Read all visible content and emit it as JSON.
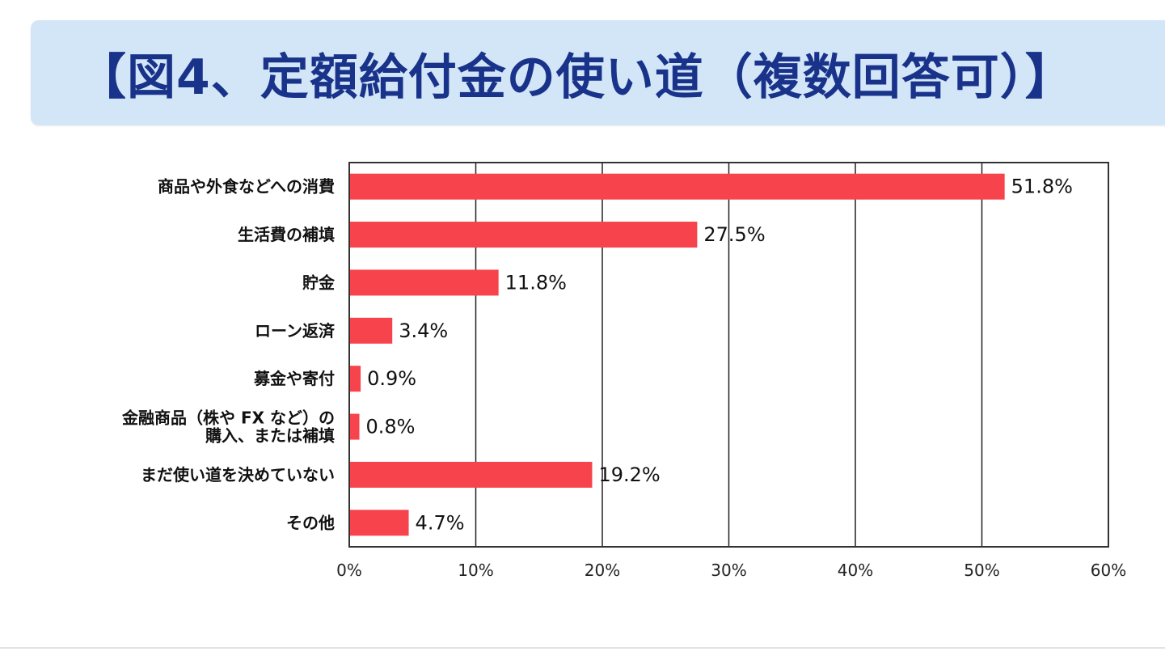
{
  "chart_data": {
    "type": "bar",
    "orientation": "horizontal",
    "title": "【図4、定額給付金の使い道（複数回答可）】",
    "categories": [
      "商品や外食などへの消費",
      "生活費の補填",
      "貯金",
      "ローン返済",
      "募金や寄付",
      "金融商品（株や FX など）の\n購入、または補填",
      "まだ使い道を決めていない",
      "その他"
    ],
    "values": [
      51.8,
      27.5,
      11.8,
      3.4,
      0.9,
      0.8,
      19.2,
      4.7
    ],
    "value_labels": [
      "51.8%",
      "27.5%",
      "11.8%",
      "3.4%",
      "0.9%",
      "0.8%",
      "19.2%",
      "4.7%"
    ],
    "xlim": [
      0,
      60
    ],
    "xticks": [
      "0%",
      "10%",
      "20%",
      "30%",
      "40%",
      "50%",
      "60%"
    ],
    "xlabel": "",
    "ylabel": "",
    "grid": "vertical",
    "bar_color": "#f7434b"
  }
}
